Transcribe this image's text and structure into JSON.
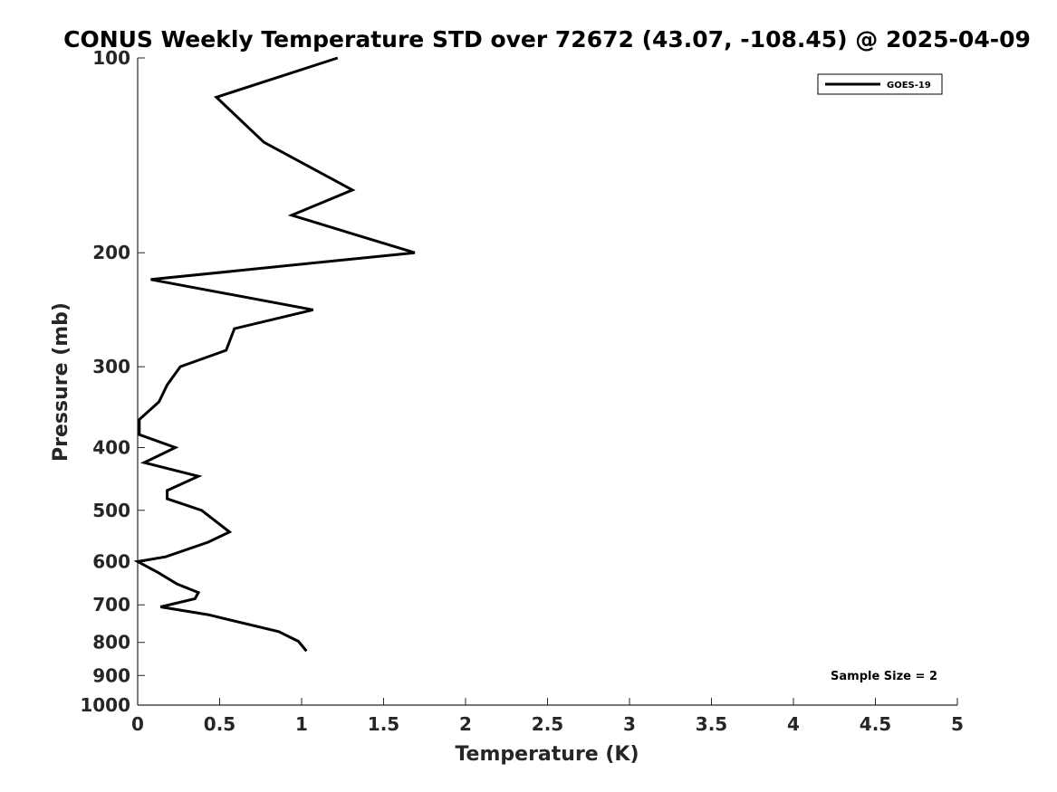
{
  "chart_data": {
    "type": "line",
    "title": "CONUS Weekly Temperature STD over 72672 (43.07, -108.45) @ 2025-04-09",
    "xlabel": "Temperature (K)",
    "ylabel": "Pressure (mb)",
    "xlim": [
      0,
      5
    ],
    "ylim": [
      100,
      1000
    ],
    "y_scale": "log",
    "y_reversed": true,
    "x_ticks": [
      "0",
      "0.5",
      "1",
      "1.5",
      "2",
      "2.5",
      "3",
      "3.5",
      "4",
      "4.5",
      "5"
    ],
    "y_ticks": [
      "100",
      "200",
      "300",
      "400",
      "500",
      "600",
      "700",
      "800",
      "900",
      "1000"
    ],
    "grid": false,
    "legend_position": "top-right",
    "series": [
      {
        "name": "GOES-19",
        "color": "#000000",
        "points": [
          {
            "x": 1.22,
            "y": 100
          },
          {
            "x": 0.48,
            "y": 115
          },
          {
            "x": 0.77,
            "y": 135
          },
          {
            "x": 1.31,
            "y": 160
          },
          {
            "x": 0.94,
            "y": 175
          },
          {
            "x": 1.69,
            "y": 200
          },
          {
            "x": 0.08,
            "y": 220
          },
          {
            "x": 1.07,
            "y": 245
          },
          {
            "x": 0.59,
            "y": 262
          },
          {
            "x": 0.54,
            "y": 283
          },
          {
            "x": 0.26,
            "y": 300
          },
          {
            "x": 0.18,
            "y": 320
          },
          {
            "x": 0.13,
            "y": 340
          },
          {
            "x": 0.01,
            "y": 362
          },
          {
            "x": 0.01,
            "y": 382
          },
          {
            "x": 0.23,
            "y": 400
          },
          {
            "x": 0.04,
            "y": 422
          },
          {
            "x": 0.37,
            "y": 443
          },
          {
            "x": 0.18,
            "y": 466
          },
          {
            "x": 0.18,
            "y": 480
          },
          {
            "x": 0.39,
            "y": 500
          },
          {
            "x": 0.56,
            "y": 540
          },
          {
            "x": 0.43,
            "y": 560
          },
          {
            "x": 0.17,
            "y": 590
          },
          {
            "x": 0.0,
            "y": 600
          },
          {
            "x": 0.13,
            "y": 625
          },
          {
            "x": 0.24,
            "y": 650
          },
          {
            "x": 0.37,
            "y": 670
          },
          {
            "x": 0.35,
            "y": 685
          },
          {
            "x": 0.14,
            "y": 705
          },
          {
            "x": 0.43,
            "y": 725
          },
          {
            "x": 0.86,
            "y": 770
          },
          {
            "x": 0.98,
            "y": 797
          },
          {
            "x": 1.03,
            "y": 825
          }
        ]
      }
    ],
    "annotation": "Sample Size = 2"
  }
}
